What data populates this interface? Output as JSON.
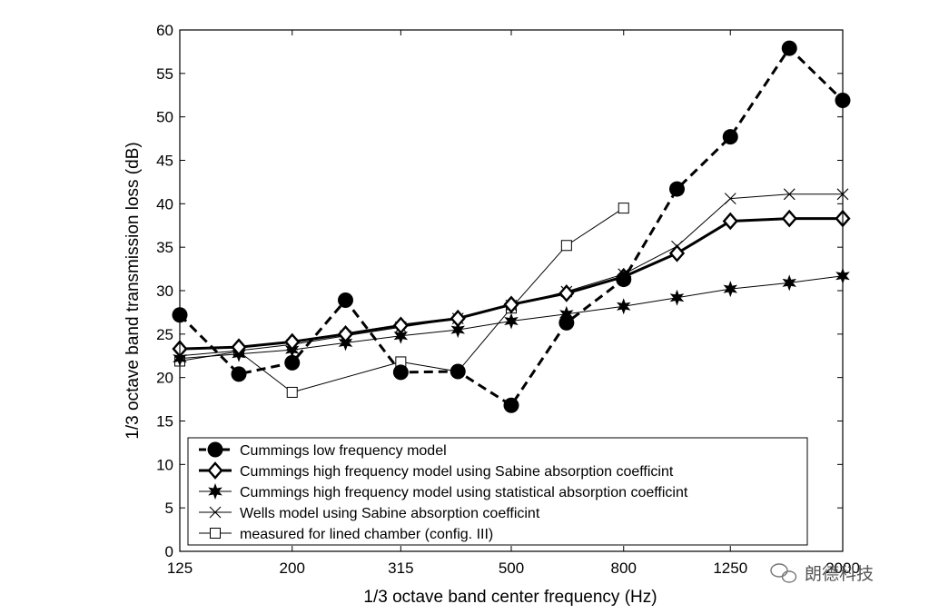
{
  "chart_data": {
    "type": "line",
    "title": "",
    "xlabel": "1/3 octave band center frequency (Hz)",
    "ylabel": "1/3 octave band transmission loss (dB)",
    "x": [
      125,
      160,
      200,
      250,
      315,
      400,
      500,
      630,
      800,
      1000,
      1250,
      1600,
      2000
    ],
    "x_tick_labels": [
      "125",
      "200",
      "315",
      "500",
      "800",
      "1250",
      "2000"
    ],
    "x_scale": "log",
    "xlim": [
      125,
      2000
    ],
    "ylim": [
      0,
      60
    ],
    "y_ticks": [
      0,
      5,
      10,
      15,
      20,
      25,
      30,
      35,
      40,
      45,
      50,
      55,
      60
    ],
    "grid": false,
    "legend_position": "bottom-left",
    "series": [
      {
        "name": "Cummings low frequency model",
        "values": [
          27.2,
          20.4,
          21.7,
          28.9,
          20.6,
          20.7,
          16.8,
          26.3,
          31.3,
          41.7,
          47.7,
          57.9,
          51.9
        ],
        "style": "dashed",
        "marker": "filled-circle",
        "color": "#000000"
      },
      {
        "name": "Cummings high frequency model using Sabine absorption coefficint",
        "values": [
          23.3,
          23.5,
          24.1,
          25.0,
          26.0,
          26.8,
          28.4,
          29.7,
          31.6,
          34.3,
          38.0,
          38.3,
          38.3
        ],
        "style": "thick",
        "marker": "diamond",
        "color": "#000000"
      },
      {
        "name": "Cummings high frequency model using statistical absorption coefficint",
        "values": [
          22.2,
          22.7,
          23.2,
          24.0,
          24.8,
          25.5,
          26.5,
          27.3,
          28.2,
          29.2,
          30.2,
          30.9,
          31.7
        ],
        "style": "thin",
        "marker": "star",
        "color": "#000000"
      },
      {
        "name": "Wells model using Sabine absorption coefficint",
        "values": [
          22.5,
          23.1,
          23.8,
          24.8,
          25.8,
          26.8,
          28.3,
          29.9,
          31.9,
          35.1,
          40.6,
          41.1,
          41.1
        ],
        "style": "thin",
        "marker": "x",
        "color": "#000000"
      },
      {
        "name": "measured for lined chamber (config. III)",
        "x": [
          125,
          160,
          200,
          315,
          400,
          500,
          630,
          800
        ],
        "values": [
          21.9,
          23.0,
          18.3,
          21.8,
          20.7,
          28.0,
          35.2,
          39.5
        ],
        "style": "thin",
        "marker": "open-square",
        "color": "#000000"
      }
    ]
  },
  "watermark": {
    "text": "朗德科技"
  }
}
